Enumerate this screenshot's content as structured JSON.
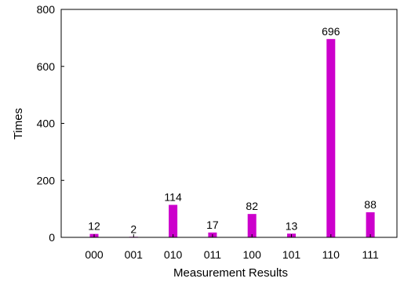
{
  "chart_data": {
    "type": "bar",
    "categories": [
      "000",
      "001",
      "010",
      "011",
      "100",
      "101",
      "110",
      "111"
    ],
    "values": [
      12,
      2,
      114,
      17,
      82,
      13,
      696,
      88
    ],
    "data_labels": [
      "12",
      "2",
      "114",
      "17",
      "82",
      "13",
      "696",
      "88"
    ],
    "xlabel": "Measurement Results",
    "ylabel": "Times",
    "ylim": [
      0,
      800
    ],
    "yticks": [
      0,
      200,
      400,
      600,
      800
    ],
    "ytick_labels": [
      "0",
      "200",
      "400",
      "600",
      "800"
    ],
    "grid": false,
    "bar_color": "#cc00cc"
  }
}
